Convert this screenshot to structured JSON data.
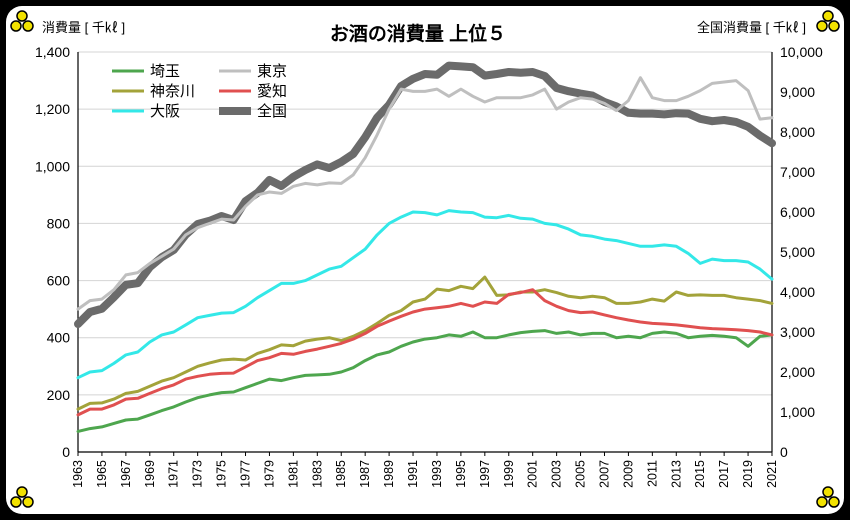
{
  "chart_data": {
    "type": "line",
    "title": "お酒の消費量 上位５",
    "ylabel_left": "消費量 [ 千㎘ ]",
    "ylabel_right": "全国消費量 [ 千㎘ ]",
    "x": [
      1963,
      1964,
      1965,
      1966,
      1967,
      1968,
      1969,
      1970,
      1971,
      1972,
      1973,
      1974,
      1975,
      1976,
      1977,
      1978,
      1979,
      1980,
      1981,
      1982,
      1983,
      1984,
      1985,
      1986,
      1987,
      1988,
      1989,
      1990,
      1991,
      1992,
      1993,
      1994,
      1995,
      1996,
      1997,
      1998,
      1999,
      2000,
      2001,
      2002,
      2003,
      2004,
      2005,
      2006,
      2007,
      2008,
      2009,
      2010,
      2011,
      2012,
      2013,
      2014,
      2015,
      2016,
      2017,
      2018,
      2019,
      2020,
      2021
    ],
    "x_tick_labels": [
      "1963",
      "1965",
      "1967",
      "1969",
      "1971",
      "1973",
      "1975",
      "1977",
      "1979",
      "1981",
      "1983",
      "1985",
      "1987",
      "1989",
      "1991",
      "1993",
      "1995",
      "1997",
      "1999",
      "2001",
      "2003",
      "2005",
      "2007",
      "2009",
      "2011",
      "2013",
      "2015",
      "2017",
      "2019",
      "2021"
    ],
    "ylim_left": [
      0,
      1400
    ],
    "y_ticks_left": [
      "0",
      "200",
      "400",
      "600",
      "800",
      "1,000",
      "1,200",
      "1,400"
    ],
    "ylim_right": [
      0,
      10000
    ],
    "y_ticks_right": [
      "0",
      "1,000",
      "2,000",
      "3,000",
      "4,000",
      "5,000",
      "6,000",
      "7,000",
      "8,000",
      "9,000",
      "10,000"
    ],
    "grid": "horizontal",
    "legend_position": "top-left",
    "series": [
      {
        "name": "埼玉",
        "axis": "left",
        "color": "#4ea64e",
        "values": [
          72,
          82,
          88,
          100,
          112,
          115,
          130,
          145,
          158,
          175,
          190,
          200,
          208,
          210,
          225,
          240,
          255,
          250,
          260,
          268,
          270,
          272,
          280,
          295,
          320,
          340,
          350,
          370,
          385,
          395,
          400,
          410,
          405,
          420,
          400,
          400,
          410,
          418,
          422,
          425,
          415,
          420,
          410,
          415,
          415,
          400,
          405,
          400,
          415,
          420,
          415,
          400,
          405,
          408,
          405,
          400,
          370,
          405,
          410
        ]
      },
      {
        "name": "神奈川",
        "axis": "left",
        "color": "#a3a33a",
        "values": [
          150,
          170,
          172,
          185,
          205,
          212,
          230,
          248,
          260,
          280,
          300,
          312,
          322,
          325,
          322,
          345,
          358,
          375,
          372,
          388,
          395,
          400,
          390,
          405,
          425,
          450,
          478,
          495,
          525,
          535,
          570,
          565,
          580,
          572,
          612,
          548,
          550,
          560,
          560,
          568,
          558,
          545,
          540,
          545,
          540,
          520,
          520,
          525,
          535,
          528,
          560,
          548,
          550,
          548,
          548,
          540,
          535,
          530,
          520
        ]
      },
      {
        "name": "大阪",
        "axis": "left",
        "color": "#33e8e8",
        "values": [
          260,
          280,
          285,
          310,
          340,
          350,
          385,
          410,
          420,
          445,
          470,
          478,
          486,
          488,
          510,
          540,
          565,
          590,
          590,
          600,
          620,
          640,
          650,
          680,
          710,
          760,
          800,
          822,
          840,
          838,
          830,
          845,
          840,
          838,
          822,
          820,
          828,
          818,
          815,
          800,
          795,
          780,
          760,
          755,
          745,
          740,
          730,
          720,
          720,
          725,
          720,
          695,
          660,
          675,
          670,
          670,
          665,
          640,
          605
        ]
      },
      {
        "name": "東京",
        "axis": "left",
        "color": "#bfbfbf",
        "values": [
          500,
          530,
          535,
          568,
          620,
          628,
          660,
          685,
          710,
          760,
          785,
          800,
          815,
          812,
          860,
          900,
          910,
          905,
          930,
          940,
          935,
          942,
          940,
          970,
          1030,
          1110,
          1200,
          1270,
          1262,
          1262,
          1270,
          1245,
          1270,
          1245,
          1225,
          1240,
          1240,
          1240,
          1250,
          1270,
          1200,
          1225,
          1240,
          1235,
          1220,
          1195,
          1230,
          1310,
          1240,
          1230,
          1230,
          1245,
          1265,
          1290,
          1295,
          1300,
          1265,
          1165,
          1170
        ]
      },
      {
        "name": "愛知",
        "axis": "left",
        "color": "#e05050",
        "values": [
          130,
          150,
          150,
          165,
          185,
          188,
          205,
          222,
          235,
          255,
          265,
          272,
          275,
          276,
          298,
          320,
          330,
          345,
          342,
          352,
          360,
          370,
          380,
          395,
          415,
          440,
          458,
          475,
          490,
          500,
          505,
          510,
          520,
          510,
          525,
          520,
          552,
          558,
          568,
          530,
          510,
          495,
          488,
          490,
          480,
          470,
          462,
          455,
          450,
          448,
          445,
          440,
          435,
          432,
          430,
          428,
          425,
          420,
          410
        ]
      },
      {
        "name": "全国",
        "axis": "right",
        "color": "#6b6b6b",
        "values": [
          3200,
          3500,
          3580,
          3870,
          4180,
          4220,
          4620,
          4870,
          5050,
          5430,
          5700,
          5780,
          5900,
          5800,
          6270,
          6480,
          6800,
          6650,
          6880,
          7050,
          7190,
          7100,
          7250,
          7450,
          7870,
          8360,
          8680,
          9150,
          9330,
          9450,
          9430,
          9660,
          9640,
          9620,
          9410,
          9450,
          9500,
          9480,
          9500,
          9400,
          9100,
          9020,
          8960,
          8910,
          8750,
          8640,
          8480,
          8460,
          8460,
          8440,
          8470,
          8460,
          8330,
          8270,
          8300,
          8250,
          8130,
          7910,
          7720
        ]
      }
    ],
    "legend_order": [
      "埼玉",
      "東京",
      "神奈川",
      "愛知",
      "大阪",
      "全国"
    ]
  },
  "decor": {
    "corner_icon": "three-dot-clover-icon",
    "corner_color": "#f2e200",
    "frame_color": "#000000"
  }
}
